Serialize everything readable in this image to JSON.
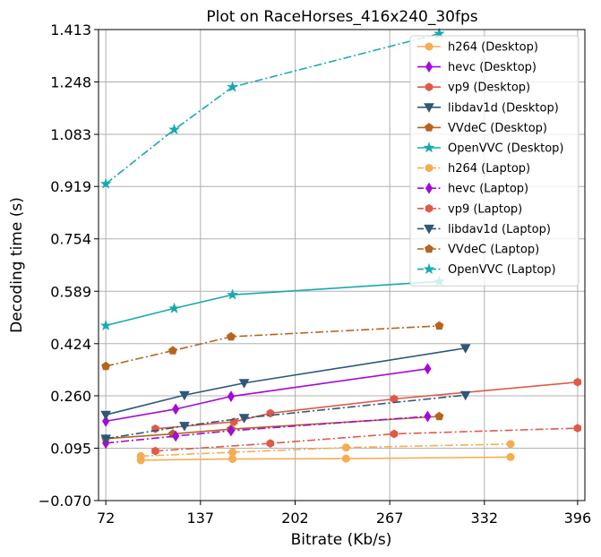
{
  "chart_data": {
    "type": "line",
    "title": "Plot on RaceHorses_416x240_30fps",
    "xlabel": "Bitrate (Kb/s)",
    "ylabel": "Decoding time (s)",
    "xlim": [
      67,
      401
    ],
    "ylim": [
      -0.07,
      1.413
    ],
    "xticks": [
      "72",
      "137",
      "202",
      "267",
      "332",
      "396"
    ],
    "yticks": [
      "−0.070",
      "0.095",
      "0.260",
      "0.424",
      "0.589",
      "0.754",
      "0.919",
      "1.083",
      "1.248",
      "1.413"
    ],
    "grid": true,
    "legend_position": "top-right",
    "series": [
      {
        "name": "h264 (Desktop)",
        "color": "#f5ad52",
        "marker": "circle",
        "dash": "solid",
        "x": [
          96,
          159,
          237,
          350
        ],
        "y": [
          0.057,
          0.061,
          0.062,
          0.067
        ]
      },
      {
        "name": "hevc (Desktop)",
        "color": "#a40ad8",
        "marker": "diamond",
        "dash": "solid",
        "x": [
          72,
          120,
          158,
          293
        ],
        "y": [
          0.18,
          0.218,
          0.258,
          0.345
        ]
      },
      {
        "name": "vp9 (Desktop)",
        "color": "#e05a48",
        "marker": "hexagon",
        "dash": "solid",
        "x": [
          106,
          160,
          185,
          270,
          396
        ],
        "y": [
          0.156,
          0.178,
          0.205,
          0.25,
          0.303
        ]
      },
      {
        "name": "libdav1d (Desktop)",
        "color": "#2e5778",
        "marker": "triangle-down",
        "dash": "solid",
        "x": [
          72,
          126,
          167,
          319
        ],
        "y": [
          0.2,
          0.262,
          0.3,
          0.41
        ]
      },
      {
        "name": "VVdeC (Desktop)",
        "color": "#b5651d",
        "marker": "pentagon",
        "dash": "solid",
        "x": [
          72,
          118,
          158,
          301
        ],
        "y": [
          0.125,
          0.14,
          0.155,
          0.195
        ]
      },
      {
        "name": "OpenVVC (Desktop)",
        "color": "#17a9b0",
        "marker": "star",
        "dash": "solid",
        "x": [
          72,
          119,
          159,
          301
        ],
        "y": [
          0.481,
          0.535,
          0.578,
          0.62
        ]
      },
      {
        "name": "h264 (Laptop)",
        "color": "#f5ad52",
        "marker": "circle",
        "dash": "dashdot",
        "x": [
          96,
          159,
          237,
          350
        ],
        "y": [
          0.07,
          0.082,
          0.097,
          0.108
        ]
      },
      {
        "name": "hevc (Laptop)",
        "color": "#a40ad8",
        "marker": "diamond",
        "dash": "dashdot",
        "x": [
          72,
          120,
          158,
          293
        ],
        "y": [
          0.111,
          0.133,
          0.15,
          0.195
        ]
      },
      {
        "name": "vp9 (Laptop)",
        "color": "#e05a48",
        "marker": "hexagon",
        "dash": "dashdot",
        "x": [
          106,
          185,
          270,
          396
        ],
        "y": [
          0.086,
          0.11,
          0.14,
          0.158
        ]
      },
      {
        "name": "libdav1d (Laptop)",
        "color": "#2e5778",
        "marker": "triangle-down",
        "dash": "dashdot",
        "x": [
          72,
          126,
          167,
          319
        ],
        "y": [
          0.125,
          0.165,
          0.19,
          0.262
        ]
      },
      {
        "name": "VVdeC (Laptop)",
        "color": "#b5651d",
        "marker": "pentagon",
        "dash": "dashdot",
        "x": [
          72,
          118,
          158,
          301
        ],
        "y": [
          0.353,
          0.402,
          0.446,
          0.48
        ]
      },
      {
        "name": "OpenVVC (Laptop)",
        "color": "#17a9b0",
        "marker": "star",
        "dash": "dashdot",
        "x": [
          72,
          119,
          159,
          301
        ],
        "y": [
          0.927,
          1.098,
          1.232,
          1.4
        ]
      }
    ]
  }
}
